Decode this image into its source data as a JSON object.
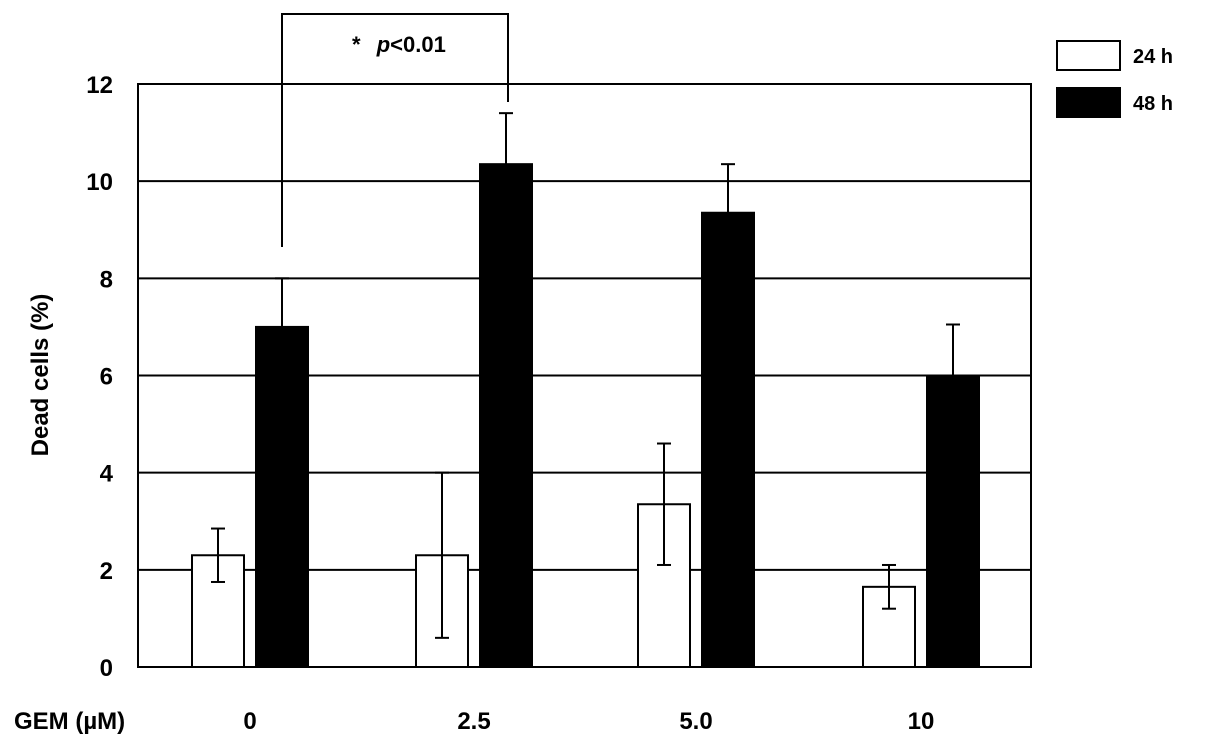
{
  "chart_data": {
    "type": "bar",
    "ylabel": "Dead cells (%)",
    "xlabel": "GEM (µM)",
    "categories": [
      "0",
      "2.5",
      "5.0",
      "10"
    ],
    "ylim": [
      0,
      12
    ],
    "yticks": [
      "0",
      "2",
      "4",
      "6",
      "8",
      "10",
      "12"
    ],
    "grid": true,
    "legend_position": "top-right",
    "series": [
      {
        "name": "24 h",
        "color": "#ffffff",
        "values": [
          2.3,
          2.3,
          3.35,
          1.65
        ],
        "errors": [
          0.55,
          1.7,
          1.25,
          0.45
        ]
      },
      {
        "name": "48 h",
        "color": "#000000",
        "values": [
          7.0,
          10.35,
          9.35,
          6.0
        ],
        "errors": [
          1.0,
          1.05,
          1.0,
          1.05
        ]
      }
    ],
    "annotation": {
      "star": "*",
      "p": "p",
      "rest": "<0.01",
      "from_category": "0",
      "to_category": "2.5"
    }
  }
}
